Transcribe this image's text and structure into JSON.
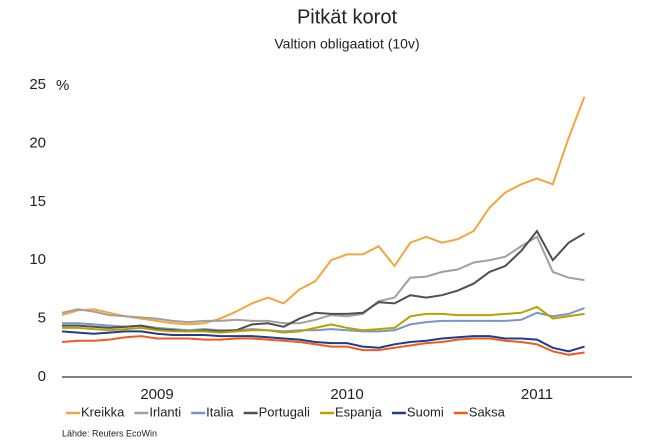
{
  "chart_data": {
    "type": "line",
    "title": "Pitkät korot",
    "subtitle": "Valtion obligaatiot (10v)",
    "y_unit": "%",
    "source": "Lähde: Reuters EcoWin",
    "x": [
      2009.0,
      2009.083,
      2009.167,
      2009.25,
      2009.333,
      2009.417,
      2009.5,
      2009.583,
      2009.667,
      2009.75,
      2009.833,
      2009.917,
      2010.0,
      2010.083,
      2010.167,
      2010.25,
      2010.333,
      2010.417,
      2010.5,
      2010.583,
      2010.667,
      2010.75,
      2010.833,
      2010.917,
      2011.0,
      2011.083,
      2011.167,
      2011.25,
      2011.333,
      2011.417,
      2011.5,
      2011.583,
      2011.667,
      2011.75
    ],
    "xlim": [
      2009,
      2012
    ],
    "xticks": [
      {
        "value": 2009.5,
        "label": "2009"
      },
      {
        "value": 2010.5,
        "label": "2010"
      },
      {
        "value": 2011.5,
        "label": "2011"
      }
    ],
    "ylim": [
      0,
      25
    ],
    "yticks": [
      0,
      5,
      10,
      15,
      20,
      25
    ],
    "series": [
      {
        "name": "Kreikka",
        "color": "#f5a53c",
        "values": [
          5.3,
          5.7,
          5.8,
          5.5,
          5.2,
          5.0,
          4.8,
          4.6,
          4.5,
          4.6,
          5.0,
          5.6,
          6.3,
          6.8,
          6.3,
          7.5,
          8.2,
          10.0,
          10.5,
          10.5,
          11.2,
          9.5,
          11.5,
          12.0,
          11.5,
          11.8,
          12.5,
          14.5,
          15.8,
          16.5,
          17.0,
          16.5,
          20.5,
          24.0
        ]
      },
      {
        "name": "Irlanti",
        "color": "#a0a0a0",
        "values": [
          5.5,
          5.8,
          5.6,
          5.3,
          5.2,
          5.1,
          5.0,
          4.8,
          4.7,
          4.8,
          4.8,
          4.9,
          4.8,
          4.8,
          4.6,
          4.6,
          4.9,
          5.3,
          5.2,
          5.4,
          6.5,
          6.8,
          8.5,
          8.6,
          9.0,
          9.2,
          9.8,
          10.0,
          10.3,
          11.2,
          12.0,
          9.0,
          8.5,
          8.3
        ]
      },
      {
        "name": "Italia",
        "color": "#7a95c8",
        "values": [
          4.6,
          4.6,
          4.5,
          4.4,
          4.3,
          4.4,
          4.2,
          4.1,
          4.0,
          4.1,
          4.0,
          4.0,
          4.1,
          4.0,
          3.9,
          4.0,
          4.0,
          4.1,
          4.0,
          3.9,
          3.9,
          4.0,
          4.5,
          4.7,
          4.8,
          4.8,
          4.8,
          4.8,
          4.8,
          4.9,
          5.5,
          5.2,
          5.4,
          5.9
        ]
      },
      {
        "name": "Portugali",
        "color": "#505050",
        "values": [
          4.4,
          4.4,
          4.3,
          4.2,
          4.3,
          4.4,
          4.1,
          4.0,
          3.9,
          4.0,
          3.9,
          4.0,
          4.5,
          4.6,
          4.3,
          5.0,
          5.5,
          5.4,
          5.4,
          5.5,
          6.4,
          6.3,
          7.0,
          6.8,
          7.0,
          7.4,
          8.0,
          9.0,
          9.5,
          10.8,
          12.5,
          10.0,
          11.5,
          12.3
        ]
      },
      {
        "name": "Espanja",
        "color": "#b8a200",
        "values": [
          4.2,
          4.2,
          4.1,
          4.0,
          4.1,
          4.2,
          4.0,
          3.9,
          3.9,
          3.9,
          3.8,
          3.9,
          4.0,
          4.0,
          3.8,
          3.9,
          4.2,
          4.5,
          4.2,
          4.0,
          4.1,
          4.2,
          5.2,
          5.4,
          5.4,
          5.3,
          5.3,
          5.3,
          5.4,
          5.5,
          6.0,
          5.0,
          5.2,
          5.4
        ]
      },
      {
        "name": "Suomi",
        "color": "#1f3d8c",
        "values": [
          3.9,
          3.8,
          3.7,
          3.8,
          3.9,
          3.9,
          3.7,
          3.6,
          3.6,
          3.6,
          3.5,
          3.5,
          3.5,
          3.4,
          3.3,
          3.2,
          3.0,
          2.9,
          2.9,
          2.6,
          2.5,
          2.8,
          3.0,
          3.1,
          3.3,
          3.4,
          3.5,
          3.5,
          3.3,
          3.3,
          3.2,
          2.5,
          2.2,
          2.6
        ]
      },
      {
        "name": "Saksa",
        "color": "#f05a1e",
        "values": [
          3.0,
          3.1,
          3.1,
          3.2,
          3.4,
          3.5,
          3.3,
          3.3,
          3.3,
          3.2,
          3.2,
          3.3,
          3.3,
          3.2,
          3.1,
          3.0,
          2.8,
          2.6,
          2.6,
          2.3,
          2.3,
          2.5,
          2.7,
          2.9,
          3.0,
          3.2,
          3.3,
          3.3,
          3.1,
          3.0,
          2.8,
          2.2,
          1.9,
          2.1
        ]
      }
    ]
  }
}
